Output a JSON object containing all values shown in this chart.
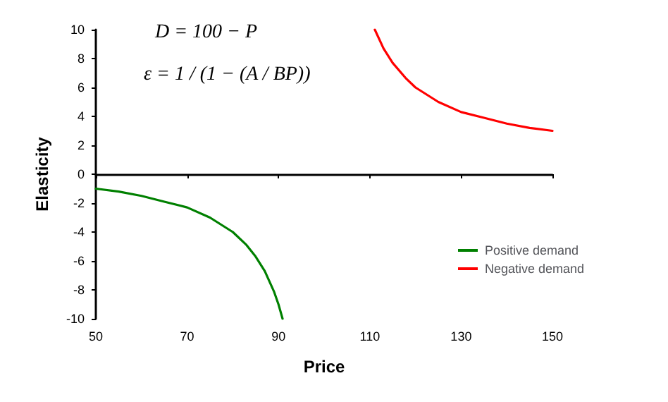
{
  "chart_data": {
    "type": "line",
    "xlabel": "Price",
    "ylabel": "Elasticity",
    "annotations": [
      "D = 100 − P",
      "ε = 1 / (1 − (A / BP))"
    ],
    "xlim": [
      50,
      150
    ],
    "xticks": [
      50,
      70,
      90,
      110,
      130,
      150
    ],
    "ylim": [
      -10,
      10
    ],
    "yticks": [
      -10,
      -8,
      -6,
      -4,
      -2,
      0,
      2,
      4,
      6,
      8,
      10
    ],
    "legend": "right",
    "marker": "none",
    "line_style": "solid",
    "series": [
      {
        "name": "Positive demand",
        "color": "#008000",
        "x": [
          50,
          55,
          60,
          65,
          70,
          75,
          80,
          83,
          85,
          87,
          89,
          90,
          90.9
        ],
        "values": [
          -1,
          -1.2,
          -1.5,
          -1.9,
          -2.3,
          -3,
          -4,
          -4.9,
          -5.7,
          -6.7,
          -8.1,
          -9,
          -10
        ]
      },
      {
        "name": "Negative demand",
        "color": "#ff0000",
        "x": [
          111.1,
          113,
          115,
          118,
          120,
          125,
          130,
          135,
          140,
          145,
          150
        ],
        "values": [
          10,
          8.7,
          7.7,
          6.6,
          6,
          5,
          4.3,
          3.9,
          3.5,
          3.2,
          3
        ]
      }
    ]
  }
}
